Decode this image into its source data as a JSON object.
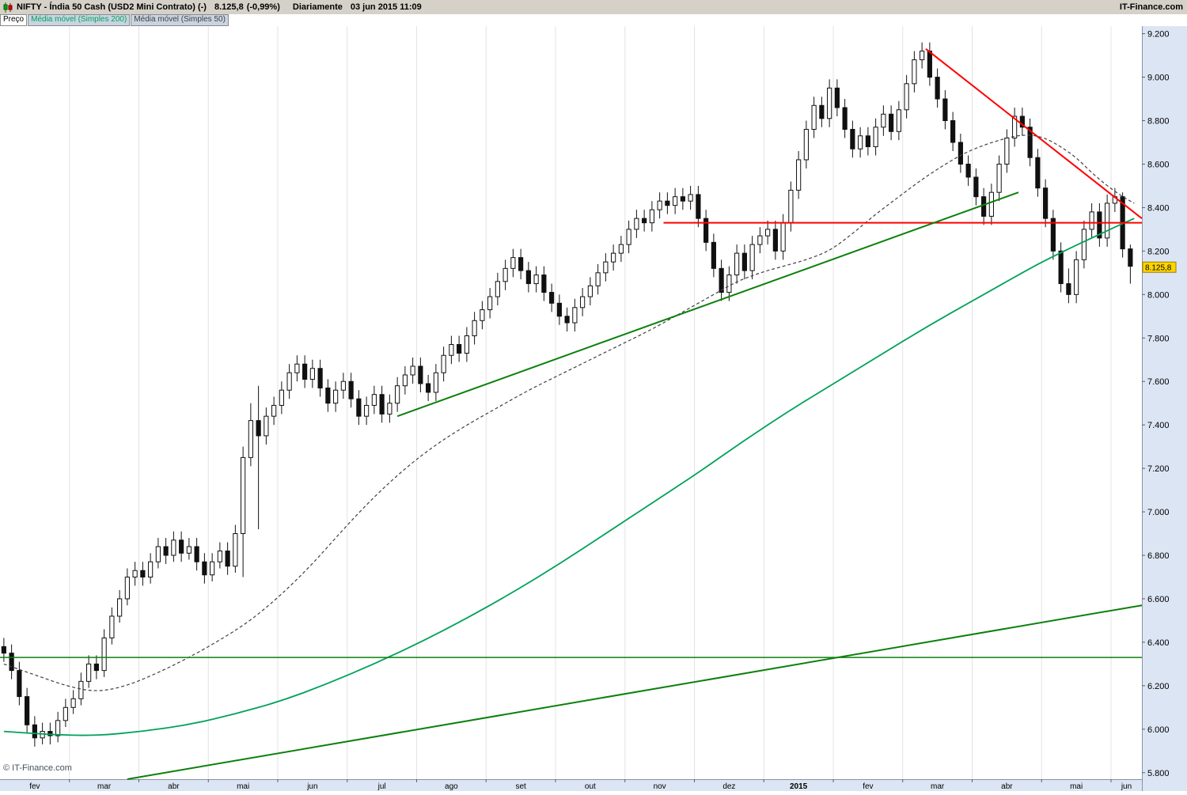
{
  "header": {
    "instrument": "NIFTY - Índia 50 Cash (USD2 Mini Contrato) (-)",
    "price": "8.125,8",
    "change": "(-0,99%)",
    "timeframe": "Diariamente",
    "datetime": "03 jun 2015 11:09",
    "brand": "IT-Finance.com"
  },
  "tabs": [
    {
      "label": "Preço"
    },
    {
      "label": "Média móvel (Simples 200)"
    },
    {
      "label": "Média móvel (Simples 50)"
    }
  ],
  "watermark": "© IT-Finance.com",
  "chart_data": {
    "type": "candlestick",
    "title": "NIFTY - Índia 50 Cash (USD2 Mini Contrato)",
    "timeframe": "Diariamente",
    "unit": "thousands of index points",
    "last_price": 8125.8,
    "last_price_label": "8.125,8",
    "change_pct": -0.99,
    "ylim": [
      5.77,
      9.235
    ],
    "y_ticks": [
      {
        "v": 9.2,
        "label": "9.200"
      },
      {
        "v": 9.0,
        "label": "9.000"
      },
      {
        "v": 8.8,
        "label": "8.800"
      },
      {
        "v": 8.6,
        "label": "8.600"
      },
      {
        "v": 8.4,
        "label": "8.400"
      },
      {
        "v": 8.2,
        "label": "8.200"
      },
      {
        "v": 8.0,
        "label": "8.000"
      },
      {
        "v": 7.8,
        "label": "7.800"
      },
      {
        "v": 7.6,
        "label": "7.600"
      },
      {
        "v": 7.4,
        "label": "7.400"
      },
      {
        "v": 7.2,
        "label": "7.200"
      },
      {
        "v": 7.0,
        "label": "7.000"
      },
      {
        "v": 6.8,
        "label": "6.800"
      },
      {
        "v": 6.6,
        "label": "6.600"
      },
      {
        "v": 6.4,
        "label": "6.400"
      },
      {
        "v": 6.2,
        "label": "6.200"
      },
      {
        "v": 6.0,
        "label": "6.000"
      },
      {
        "v": 5.8,
        "label": "5.800"
      }
    ],
    "months": [
      "fev",
      "mar",
      "abr",
      "mai",
      "jun",
      "jul",
      "ago",
      "set",
      "out",
      "nov",
      "dez",
      "2015",
      "fev",
      "mar",
      "abr",
      "mai",
      "jun"
    ],
    "bold_month_index": 11,
    "candles_per_month": 9,
    "candles": [
      [
        6.38,
        6.42,
        6.31,
        6.35
      ],
      [
        6.35,
        6.39,
        6.23,
        6.27
      ],
      [
        6.27,
        6.31,
        6.11,
        6.15
      ],
      [
        6.15,
        6.19,
        5.98,
        6.02
      ],
      [
        6.02,
        6.06,
        5.92,
        5.96
      ],
      [
        5.96,
        6.03,
        5.93,
        5.99
      ],
      [
        5.99,
        6.03,
        5.93,
        5.97
      ],
      [
        5.97,
        6.08,
        5.94,
        6.04
      ],
      [
        6.04,
        6.14,
        6.01,
        6.1
      ],
      [
        6.1,
        6.18,
        6.07,
        6.14
      ],
      [
        6.14,
        6.26,
        6.11,
        6.22
      ],
      [
        6.22,
        6.34,
        6.19,
        6.3
      ],
      [
        6.3,
        6.34,
        6.23,
        6.27
      ],
      [
        6.27,
        6.46,
        6.24,
        6.42
      ],
      [
        6.42,
        6.56,
        6.39,
        6.52
      ],
      [
        6.52,
        6.64,
        6.49,
        6.6
      ],
      [
        6.6,
        6.74,
        6.57,
        6.7
      ],
      [
        6.7,
        6.77,
        6.66,
        6.73
      ],
      [
        6.73,
        6.77,
        6.66,
        6.7
      ],
      [
        6.7,
        6.81,
        6.67,
        6.77
      ],
      [
        6.77,
        6.88,
        6.74,
        6.84
      ],
      [
        6.84,
        6.88,
        6.76,
        6.8
      ],
      [
        6.8,
        6.91,
        6.77,
        6.87
      ],
      [
        6.87,
        6.91,
        6.77,
        6.81
      ],
      [
        6.81,
        6.88,
        6.78,
        6.84
      ],
      [
        6.84,
        6.88,
        6.73,
        6.77
      ],
      [
        6.77,
        6.81,
        6.67,
        6.71
      ],
      [
        6.71,
        6.81,
        6.68,
        6.77
      ],
      [
        6.77,
        6.86,
        6.74,
        6.82
      ],
      [
        6.82,
        6.86,
        6.71,
        6.75
      ],
      [
        6.75,
        6.94,
        6.72,
        6.9
      ],
      [
        6.9,
        7.3,
        6.7,
        7.25
      ],
      [
        7.25,
        7.5,
        7.21,
        7.42
      ],
      [
        7.42,
        7.58,
        6.92,
        7.35
      ],
      [
        7.35,
        7.48,
        7.31,
        7.44
      ],
      [
        7.44,
        7.53,
        7.4,
        7.49
      ],
      [
        7.49,
        7.6,
        7.45,
        7.56
      ],
      [
        7.56,
        7.68,
        7.52,
        7.64
      ],
      [
        7.64,
        7.72,
        7.6,
        7.68
      ],
      [
        7.68,
        7.72,
        7.57,
        7.61
      ],
      [
        7.61,
        7.7,
        7.57,
        7.66
      ],
      [
        7.66,
        7.7,
        7.53,
        7.57
      ],
      [
        7.57,
        7.61,
        7.46,
        7.5
      ],
      [
        7.5,
        7.6,
        7.46,
        7.56
      ],
      [
        7.56,
        7.64,
        7.52,
        7.6
      ],
      [
        7.6,
        7.64,
        7.48,
        7.52
      ],
      [
        7.52,
        7.56,
        7.4,
        7.44
      ],
      [
        7.44,
        7.53,
        7.4,
        7.49
      ],
      [
        7.49,
        7.58,
        7.45,
        7.54
      ],
      [
        7.54,
        7.58,
        7.41,
        7.45
      ],
      [
        7.45,
        7.54,
        7.41,
        7.5
      ],
      [
        7.5,
        7.62,
        7.46,
        7.58
      ],
      [
        7.58,
        7.67,
        7.54,
        7.63
      ],
      [
        7.63,
        7.71,
        7.59,
        7.67
      ],
      [
        7.67,
        7.71,
        7.55,
        7.59
      ],
      [
        7.59,
        7.63,
        7.51,
        7.55
      ],
      [
        7.55,
        7.68,
        7.51,
        7.64
      ],
      [
        7.64,
        7.76,
        7.6,
        7.72
      ],
      [
        7.72,
        7.81,
        7.68,
        7.77
      ],
      [
        7.77,
        7.81,
        7.69,
        7.73
      ],
      [
        7.73,
        7.85,
        7.69,
        7.81
      ],
      [
        7.81,
        7.92,
        7.77,
        7.88
      ],
      [
        7.88,
        7.97,
        7.84,
        7.93
      ],
      [
        7.93,
        8.03,
        7.89,
        7.99
      ],
      [
        7.99,
        8.1,
        7.95,
        8.06
      ],
      [
        8.06,
        8.16,
        8.02,
        8.12
      ],
      [
        8.12,
        8.21,
        8.08,
        8.17
      ],
      [
        8.17,
        8.21,
        8.07,
        8.11
      ],
      [
        8.11,
        8.15,
        8.01,
        8.05
      ],
      [
        8.05,
        8.13,
        8.01,
        8.09
      ],
      [
        8.09,
        8.13,
        7.97,
        8.01
      ],
      [
        8.01,
        8.05,
        7.92,
        7.96
      ],
      [
        7.96,
        8.0,
        7.86,
        7.9
      ],
      [
        7.9,
        7.94,
        7.83,
        7.87
      ],
      [
        7.87,
        7.98,
        7.83,
        7.94
      ],
      [
        7.94,
        8.03,
        7.9,
        7.99
      ],
      [
        7.99,
        8.08,
        7.95,
        8.04
      ],
      [
        8.04,
        8.14,
        8.0,
        8.1
      ],
      [
        8.1,
        8.19,
        8.06,
        8.15
      ],
      [
        8.15,
        8.23,
        8.11,
        8.19
      ],
      [
        8.19,
        8.27,
        8.15,
        8.23
      ],
      [
        8.23,
        8.34,
        8.19,
        8.3
      ],
      [
        8.3,
        8.39,
        8.26,
        8.35
      ],
      [
        8.35,
        8.39,
        8.29,
        8.33
      ],
      [
        8.33,
        8.43,
        8.29,
        8.39
      ],
      [
        8.39,
        8.47,
        8.35,
        8.43
      ],
      [
        8.43,
        8.47,
        8.37,
        8.41
      ],
      [
        8.41,
        8.49,
        8.37,
        8.45
      ],
      [
        8.45,
        8.49,
        8.39,
        8.43
      ],
      [
        8.43,
        8.5,
        8.39,
        8.46
      ],
      [
        8.46,
        8.5,
        8.31,
        8.35
      ],
      [
        8.35,
        8.39,
        8.2,
        8.24
      ],
      [
        8.24,
        8.28,
        8.08,
        8.12
      ],
      [
        8.12,
        8.16,
        7.97,
        8.01
      ],
      [
        8.01,
        8.13,
        7.97,
        8.09
      ],
      [
        8.09,
        8.23,
        8.05,
        8.19
      ],
      [
        8.19,
        8.23,
        8.07,
        8.11
      ],
      [
        8.11,
        8.27,
        8.07,
        8.23
      ],
      [
        8.23,
        8.31,
        8.19,
        8.27
      ],
      [
        8.27,
        8.34,
        8.23,
        8.3
      ],
      [
        8.3,
        8.34,
        8.16,
        8.2
      ],
      [
        8.2,
        8.37,
        8.16,
        8.33
      ],
      [
        8.33,
        8.52,
        8.29,
        8.48
      ],
      [
        8.48,
        8.66,
        8.44,
        8.62
      ],
      [
        8.62,
        8.8,
        8.58,
        8.76
      ],
      [
        8.76,
        8.91,
        8.72,
        8.87
      ],
      [
        8.87,
        8.91,
        8.77,
        8.81
      ],
      [
        8.81,
        8.99,
        8.77,
        8.95
      ],
      [
        8.95,
        8.99,
        8.82,
        8.86
      ],
      [
        8.86,
        8.9,
        8.72,
        8.76
      ],
      [
        8.76,
        8.8,
        8.63,
        8.67
      ],
      [
        8.67,
        8.77,
        8.63,
        8.73
      ],
      [
        8.73,
        8.77,
        8.64,
        8.68
      ],
      [
        8.68,
        8.81,
        8.64,
        8.77
      ],
      [
        8.77,
        8.87,
        8.73,
        8.83
      ],
      [
        8.83,
        8.87,
        8.71,
        8.75
      ],
      [
        8.75,
        8.89,
        8.71,
        8.85
      ],
      [
        8.85,
        9.01,
        8.81,
        8.97
      ],
      [
        8.97,
        9.12,
        8.93,
        9.08
      ],
      [
        9.08,
        9.16,
        9.04,
        9.12
      ],
      [
        9.12,
        9.16,
        8.96,
        9.0
      ],
      [
        9.0,
        9.04,
        8.86,
        8.9
      ],
      [
        8.9,
        8.94,
        8.76,
        8.8
      ],
      [
        8.8,
        8.84,
        8.66,
        8.7
      ],
      [
        8.7,
        8.74,
        8.56,
        8.6
      ],
      [
        8.6,
        8.64,
        8.5,
        8.54
      ],
      [
        8.54,
        8.58,
        8.41,
        8.45
      ],
      [
        8.45,
        8.49,
        8.32,
        8.36
      ],
      [
        8.36,
        8.51,
        8.32,
        8.47
      ],
      [
        8.47,
        8.64,
        8.43,
        8.6
      ],
      [
        8.6,
        8.76,
        8.56,
        8.72
      ],
      [
        8.72,
        8.86,
        8.68,
        8.82
      ],
      [
        8.82,
        8.86,
        8.73,
        8.77
      ],
      [
        8.77,
        8.81,
        8.59,
        8.63
      ],
      [
        8.63,
        8.67,
        8.45,
        8.49
      ],
      [
        8.49,
        8.53,
        8.31,
        8.35
      ],
      [
        8.35,
        8.39,
        8.16,
        8.2
      ],
      [
        8.2,
        8.24,
        8.01,
        8.05
      ],
      [
        8.05,
        8.12,
        7.96,
        8.0
      ],
      [
        8.0,
        8.2,
        7.96,
        8.16
      ],
      [
        8.16,
        8.34,
        8.12,
        8.3
      ],
      [
        8.3,
        8.42,
        8.26,
        8.38
      ],
      [
        8.38,
        8.42,
        8.22,
        8.26
      ],
      [
        8.26,
        8.46,
        8.22,
        8.42
      ],
      [
        8.42,
        8.49,
        8.38,
        8.45
      ],
      [
        8.45,
        8.47,
        8.17,
        8.21
      ],
      [
        8.21,
        8.23,
        8.05,
        8.13
      ]
    ],
    "sma200": {
      "label": "Média móvel (Simples 200)",
      "color": "#00a25a",
      "points": [
        [
          0,
          5.99
        ],
        [
          6,
          5.975
        ],
        [
          12,
          5.97
        ],
        [
          18,
          5.99
        ],
        [
          24,
          6.02
        ],
        [
          30,
          6.07
        ],
        [
          36,
          6.13
        ],
        [
          42,
          6.21
        ],
        [
          48,
          6.3
        ],
        [
          54,
          6.4
        ],
        [
          60,
          6.51
        ],
        [
          66,
          6.63
        ],
        [
          72,
          6.76
        ],
        [
          78,
          6.9
        ],
        [
          84,
          7.04
        ],
        [
          90,
          7.18
        ],
        [
          96,
          7.33
        ],
        [
          102,
          7.47
        ],
        [
          108,
          7.6
        ],
        [
          114,
          7.73
        ],
        [
          120,
          7.86
        ],
        [
          126,
          7.98
        ],
        [
          130,
          8.06
        ],
        [
          134,
          8.14
        ],
        [
          138,
          8.21
        ],
        [
          141,
          8.26
        ],
        [
          144,
          8.31
        ],
        [
          146.5,
          8.35
        ]
      ]
    },
    "sma50": {
      "label": "Média móvel (Simples 50)",
      "color": "#404040",
      "dashed": true,
      "points": [
        [
          0,
          6.3
        ],
        [
          4,
          6.25
        ],
        [
          8,
          6.2
        ],
        [
          12,
          6.17
        ],
        [
          16,
          6.2
        ],
        [
          20,
          6.26
        ],
        [
          24,
          6.33
        ],
        [
          28,
          6.41
        ],
        [
          32,
          6.5
        ],
        [
          36,
          6.62
        ],
        [
          40,
          6.76
        ],
        [
          44,
          6.92
        ],
        [
          48,
          7.07
        ],
        [
          52,
          7.2
        ],
        [
          56,
          7.31
        ],
        [
          60,
          7.4
        ],
        [
          64,
          7.48
        ],
        [
          68,
          7.56
        ],
        [
          72,
          7.63
        ],
        [
          76,
          7.7
        ],
        [
          80,
          7.77
        ],
        [
          84,
          7.84
        ],
        [
          88,
          7.92
        ],
        [
          92,
          8.0
        ],
        [
          95,
          8.06
        ],
        [
          98,
          8.1
        ],
        [
          101,
          8.13
        ],
        [
          104,
          8.16
        ],
        [
          107,
          8.2
        ],
        [
          110,
          8.28
        ],
        [
          113,
          8.37
        ],
        [
          116,
          8.45
        ],
        [
          119,
          8.53
        ],
        [
          122,
          8.6
        ],
        [
          125,
          8.66
        ],
        [
          128,
          8.7
        ],
        [
          131,
          8.73
        ],
        [
          133,
          8.735
        ],
        [
          135,
          8.72
        ],
        [
          137,
          8.68
        ],
        [
          139,
          8.63
        ],
        [
          141,
          8.56
        ],
        [
          143,
          8.5
        ],
        [
          145,
          8.45
        ],
        [
          146.5,
          8.42
        ]
      ]
    },
    "trendlines": [
      {
        "name": "descending-resistance",
        "color": "#ff0000",
        "width": 2,
        "from": [
          119.5,
          9.13
        ],
        "to": [
          148.5,
          8.35
        ]
      },
      {
        "name": "horizontal-resistance",
        "color": "#ff0000",
        "width": 2,
        "from": [
          85.5,
          8.33
        ],
        "to": [
          148.5,
          8.33
        ]
      },
      {
        "name": "rising-support",
        "color": "#0c800c",
        "width": 2,
        "from": [
          51,
          7.44
        ],
        "to": [
          131.5,
          8.47
        ]
      },
      {
        "name": "long-term-support",
        "color": "#0c800c",
        "width": 2,
        "from": [
          16,
          5.77
        ],
        "to": [
          148.5,
          6.57
        ]
      },
      {
        "name": "horizontal-support",
        "color": "#0c800c",
        "width": 1.5,
        "from": [
          -1,
          6.33
        ],
        "to": [
          148.5,
          6.33
        ]
      }
    ],
    "colors": {
      "up": "#ffffff",
      "down": "#101010",
      "outline": "#101010",
      "grid": "#e3e3e3",
      "axis_bg": "#dce5f3",
      "axis_border": "#8a93a3",
      "last_price_bg": "#ffd500",
      "last_price_border": "#9a7d00"
    },
    "legend_position": "top-left-tabs",
    "grid": "vertical-month-lines"
  }
}
